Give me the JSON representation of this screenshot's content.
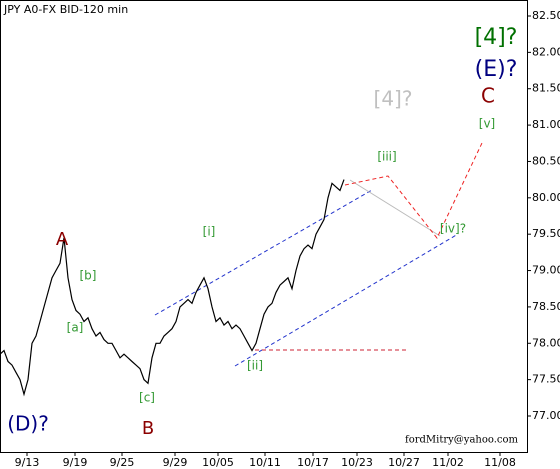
{
  "chart_data": {
    "type": "line",
    "title": "JPY A0-FX BID-120 min",
    "x": [
      0,
      1,
      2,
      3,
      4,
      5,
      6,
      7,
      8,
      9,
      10,
      11,
      12,
      13,
      14,
      15,
      16,
      17,
      18,
      19,
      20,
      21,
      22,
      23,
      24,
      25,
      26,
      27,
      28,
      29,
      30,
      31,
      32,
      33,
      34,
      35,
      36,
      37,
      38,
      39,
      40,
      41,
      42,
      43,
      44,
      45,
      46,
      47,
      48,
      49,
      50,
      51,
      52,
      53,
      54,
      55,
      56,
      57,
      58,
      59,
      60,
      61,
      62,
      63,
      64,
      65,
      66,
      67,
      68,
      69,
      70,
      71,
      72,
      73,
      74,
      75,
      76,
      77,
      78,
      79,
      80,
      81,
      82,
      83,
      84,
      85,
      86
    ],
    "series": [
      {
        "name": "JPY A0-FX BID",
        "color": "#000000",
        "values": [
          77.85,
          77.9,
          77.75,
          77.7,
          77.6,
          77.5,
          77.3,
          77.5,
          78.0,
          78.1,
          78.3,
          78.5,
          78.7,
          78.9,
          79.0,
          79.1,
          79.45,
          78.9,
          78.6,
          78.45,
          78.4,
          78.3,
          78.35,
          78.2,
          78.1,
          78.15,
          78.05,
          78.0,
          78.0,
          77.9,
          77.8,
          77.85,
          77.8,
          77.75,
          77.7,
          77.65,
          77.5,
          77.45,
          77.8,
          78.0,
          78.0,
          78.1,
          78.15,
          78.2,
          78.3,
          78.5,
          78.55,
          78.6,
          78.55,
          78.7,
          78.8,
          78.9,
          78.75,
          78.5,
          78.3,
          78.35,
          78.25,
          78.3,
          78.2,
          78.25,
          78.2,
          78.1,
          78.0,
          77.9,
          78.0,
          78.2,
          78.4,
          78.5,
          78.55,
          78.7,
          78.8,
          78.85,
          78.9,
          78.75,
          79.0,
          79.2,
          79.3,
          79.35,
          79.3,
          79.5,
          79.6,
          79.7,
          80.0,
          80.2,
          80.15,
          80.1,
          80.25
        ]
      }
    ],
    "xlim": [
      0,
      131.75
    ],
    "xticks": [
      {
        "value": 6.75,
        "label": "9/13"
      },
      {
        "value": 18.75,
        "label": "9/19"
      },
      {
        "value": 30.5,
        "label": "9/25"
      },
      {
        "value": 43.75,
        "label": "9/29"
      },
      {
        "value": 54.5,
        "label": "10/05"
      },
      {
        "value": 66.25,
        "label": "10/11"
      },
      {
        "value": 78.25,
        "label": "10/17"
      },
      {
        "value": 89.25,
        "label": "10/23"
      },
      {
        "value": 101,
        "label": "10/27"
      },
      {
        "value": 112,
        "label": "11/02"
      },
      {
        "value": 125,
        "label": "11/08"
      }
    ],
    "ylim": [
      76.505,
      82.72
    ],
    "yticks": [
      {
        "value": 77.0,
        "label": "77.00"
      },
      {
        "value": 77.5,
        "label": "77.50"
      },
      {
        "value": 78.0,
        "label": "78.00"
      },
      {
        "value": 78.5,
        "label": "78.50"
      },
      {
        "value": 79.0,
        "label": "79.00"
      },
      {
        "value": 79.5,
        "label": "79.50"
      },
      {
        "value": 80.0,
        "label": "80.00"
      },
      {
        "value": 80.5,
        "label": "80.50"
      },
      {
        "value": 81.0,
        "label": "81.00"
      },
      {
        "value": 81.5,
        "label": "81.50"
      },
      {
        "value": 82.0,
        "label": "82.00"
      },
      {
        "value": 82.5,
        "label": "82.50"
      }
    ],
    "grid": false,
    "annotations": [
      {
        "text": "[4]?",
        "color": "#007000"
      },
      {
        "text": "(E)?",
        "color": "#000080"
      },
      {
        "text": "C",
        "color": "#8b0000"
      },
      {
        "text": "[4]?",
        "color": "#c0c0c0"
      },
      {
        "text": "[v]",
        "color": "#339933"
      },
      {
        "text": "[iii]",
        "color": "#339933"
      },
      {
        "text": "A",
        "color": "#8b0000"
      },
      {
        "text": "[i]",
        "color": "#339933"
      },
      {
        "text": "[b]",
        "color": "#339933"
      },
      {
        "text": "[iv]?",
        "color": "#339933"
      },
      {
        "text": "[a]",
        "color": "#339933"
      },
      {
        "text": "[ii]",
        "color": "#339933"
      },
      {
        "text": "[c]",
        "color": "#339933"
      },
      {
        "text": "(D)?",
        "color": "#000080"
      },
      {
        "text": "B",
        "color": "#8b0000"
      }
    ],
    "footer": "fordMitry@yahoo.com"
  }
}
